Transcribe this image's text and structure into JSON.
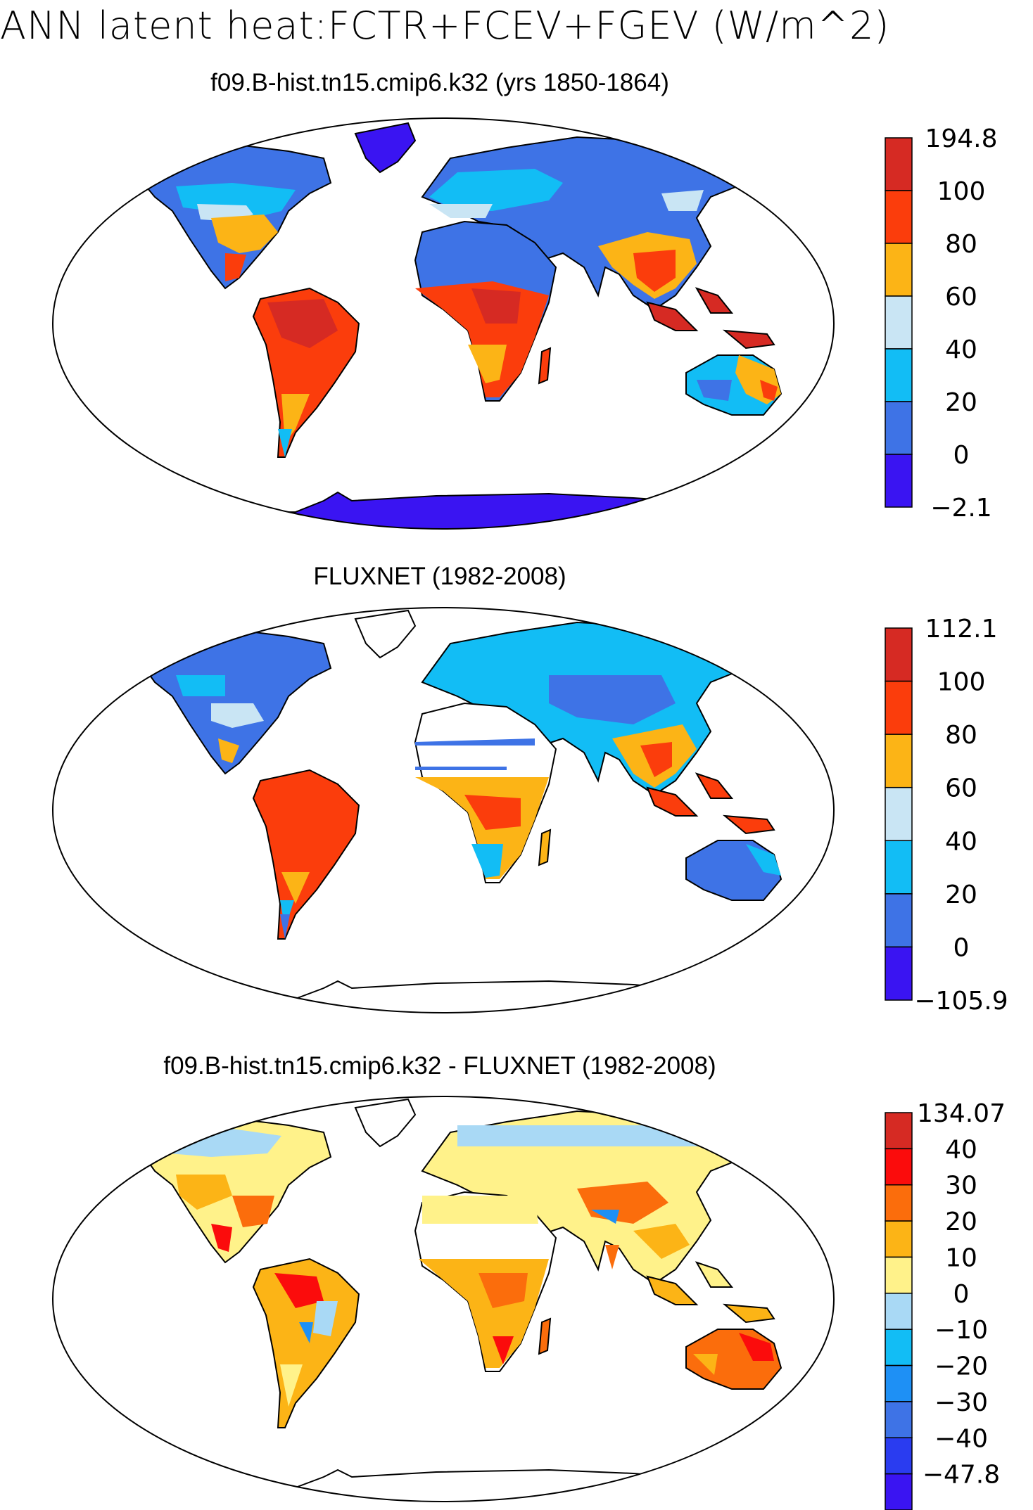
{
  "page_title": "ANN latent heat:FCTR+FCEV+FGEV (W/m^2)",
  "panels": [
    {
      "id": "model",
      "title": "f09.B-hist.tn15.cmip6.k32 (yrs 1850-1864)",
      "colorbar": {
        "labels": [
          "194.8",
          "100",
          "80",
          "60",
          "40",
          "20",
          "0",
          "-2.1"
        ],
        "colors": [
          "#d62a23",
          "#fb3d0c",
          "#fcb416",
          "#c9e5f4",
          "#12bdf5",
          "#3e73e6",
          "#3a14f2"
        ]
      }
    },
    {
      "id": "obs",
      "title": "FLUXNET (1982-2008)",
      "colorbar": {
        "labels": [
          "112.1",
          "100",
          "80",
          "60",
          "40",
          "20",
          "0",
          "-105.9"
        ],
        "colors": [
          "#d62a23",
          "#fb3d0c",
          "#fcb416",
          "#c9e5f4",
          "#12bdf5",
          "#3e73e6",
          "#3a14f2"
        ]
      }
    },
    {
      "id": "diff",
      "title": "f09.B-hist.tn15.cmip6.k32 - FLUXNET (1982-2008)",
      "colorbar": {
        "labels": [
          "134.07",
          "40",
          "30",
          "20",
          "10",
          "0",
          "-10",
          "-20",
          "-30",
          "-40",
          "-47.8"
        ],
        "colors": [
          "#d62a23",
          "#fb0c0c",
          "#fb6d0c",
          "#fcb416",
          "#fff28a",
          "#a9d9f5",
          "#12bdf5",
          "#1e90f5",
          "#3e73e6",
          "#2a3cf0",
          "#3a14f2"
        ]
      }
    }
  ],
  "legend_colors": {
    "very_high": "#d62a23",
    "high": "#fb3d0c",
    "mid_high": "#fcb416",
    "mid": "#c9e5f4",
    "mid_low": "#12bdf5",
    "low": "#3e73e6",
    "very_low": "#3a14f2",
    "diff_slight_pos": "#fff28a"
  }
}
